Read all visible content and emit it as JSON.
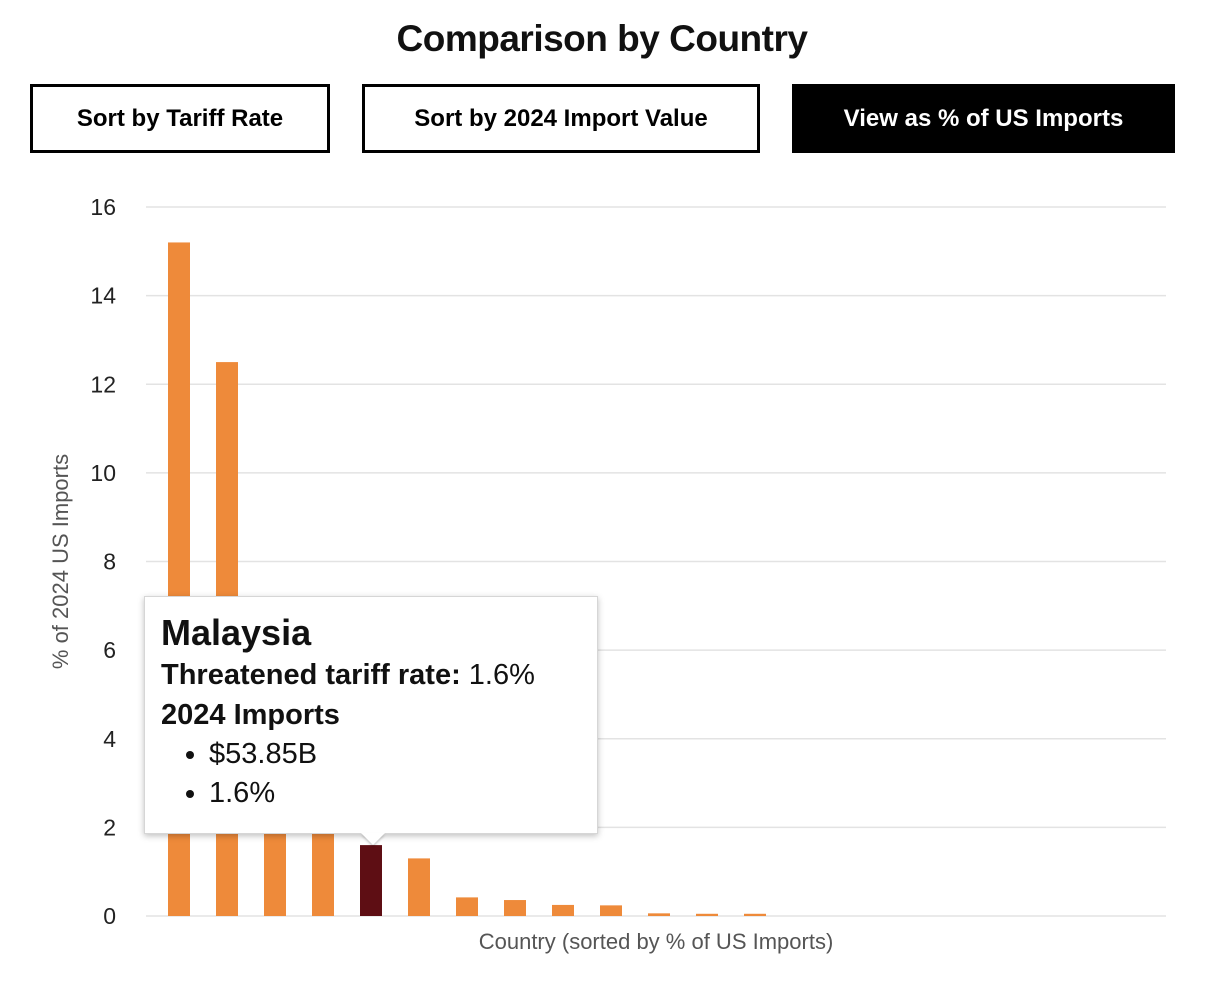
{
  "title": "Comparison by Country",
  "controls": {
    "sort_tariff": "Sort by Tariff Rate",
    "sort_import": "Sort by 2024 Import Value",
    "view_pct": "View as % of US Imports"
  },
  "colors": {
    "bar": "#ee8a3a",
    "bar_highlight": "#5e0e14",
    "grid": "#e3e3e3"
  },
  "tooltip": {
    "country": "Malaysia",
    "tariff_label": "Threatened tariff rate:",
    "tariff_value": "1.6%",
    "imports_label": "2024 Imports",
    "imports_value": "$53.85B",
    "imports_pct": "1.6%"
  },
  "chart_data": {
    "type": "bar",
    "title": "Comparison by Country",
    "xlabel": "Country (sorted by % of US Imports)",
    "ylabel": "% of 2024 US Imports",
    "ylim": [
      0,
      16
    ],
    "yticks": [
      0,
      2,
      4,
      6,
      8,
      10,
      12,
      14,
      16
    ],
    "grid": true,
    "values": [
      15.2,
      12.5,
      6.0,
      5.0,
      1.6,
      1.3,
      0.42,
      0.36,
      0.25,
      0.24,
      0.06,
      0.05,
      0.05
    ],
    "highlight_index": 4,
    "highlight_category": "Malaysia"
  }
}
